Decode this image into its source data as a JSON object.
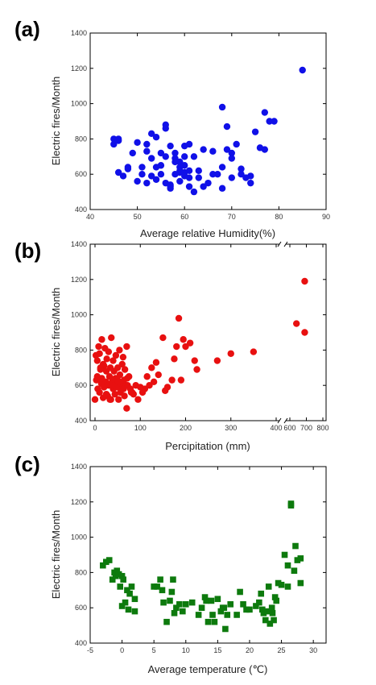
{
  "panels": [
    {
      "letter": "(a)",
      "xlabel": "Average relative Humidity(%)",
      "ylabel": "Electric fires/Month"
    },
    {
      "letter": "(b)",
      "xlabel": "Percipitation (mm)",
      "ylabel": "Electric fires/Month"
    },
    {
      "letter": "(c)",
      "xlabel": "Average temperature (℃)",
      "ylabel": "Electric fires/Month"
    }
  ],
  "chart_data": [
    {
      "type": "scatter",
      "title": "",
      "xlabel": "Average relative Humidity(%)",
      "ylabel": "Electric fires/Month",
      "xlim": [
        40,
        90
      ],
      "ylim": [
        400,
        1400
      ],
      "xticks": [
        40,
        50,
        60,
        70,
        80,
        90
      ],
      "yticks": [
        400,
        600,
        800,
        1000,
        1200,
        1400
      ],
      "marker": "circle",
      "color": "#1010e8",
      "grid": false,
      "x": [
        45,
        45,
        46,
        46,
        47,
        48,
        49,
        50,
        51,
        51,
        52,
        52,
        53,
        53,
        54,
        54,
        55,
        55,
        56,
        56,
        56,
        57,
        57,
        58,
        58,
        58,
        59,
        59,
        59,
        60,
        60,
        60,
        60,
        61,
        61,
        62,
        63,
        63,
        64,
        65,
        66,
        67,
        68,
        68,
        69,
        70,
        70,
        71,
        72,
        73,
        74,
        75,
        76,
        77,
        78,
        85,
        46,
        48,
        50,
        52,
        53,
        54,
        55,
        56,
        57,
        58,
        59,
        60,
        61,
        62,
        64,
        66,
        68,
        69,
        70,
        72,
        74,
        77,
        79,
        57,
        59,
        61
      ],
      "y": [
        800,
        770,
        800,
        610,
        590,
        640,
        720,
        780,
        640,
        600,
        550,
        770,
        590,
        830,
        640,
        810,
        720,
        600,
        860,
        880,
        550,
        520,
        760,
        690,
        720,
        600,
        640,
        620,
        670,
        650,
        700,
        590,
        610,
        530,
        580,
        500,
        620,
        580,
        530,
        550,
        730,
        600,
        980,
        640,
        870,
        720,
        580,
        770,
        630,
        580,
        590,
        840,
        750,
        950,
        900,
        1190,
        790,
        630,
        560,
        730,
        690,
        570,
        650,
        700,
        530,
        670,
        610,
        760,
        620,
        700,
        740,
        600,
        520,
        740,
        690,
        600,
        550,
        740,
        900,
        540,
        560,
        770
      ]
    },
    {
      "type": "scatter",
      "title": "",
      "xlabel": "Percipitation (mm)",
      "ylabel": "Electric fires/Month",
      "xlim": [
        -20,
        800
      ],
      "ylim": [
        400,
        1400
      ],
      "xticks": [
        0,
        100,
        200,
        300,
        400,
        600,
        700,
        800
      ],
      "yticks": [
        400,
        600,
        800,
        1000,
        1200,
        1400
      ],
      "axis_break": "between 400 and 600",
      "marker": "circle",
      "color": "#e81010",
      "grid": false,
      "x": [
        0,
        2,
        3,
        5,
        6,
        8,
        10,
        10,
        12,
        14,
        15,
        15,
        18,
        20,
        20,
        22,
        24,
        25,
        26,
        28,
        30,
        30,
        32,
        34,
        35,
        36,
        38,
        40,
        40,
        42,
        44,
        45,
        46,
        48,
        50,
        50,
        52,
        54,
        55,
        56,
        58,
        60,
        60,
        62,
        64,
        65,
        66,
        68,
        70,
        70,
        72,
        75,
        78,
        80,
        85,
        90,
        95,
        100,
        105,
        110,
        115,
        120,
        125,
        130,
        135,
        140,
        150,
        155,
        160,
        170,
        175,
        180,
        185,
        190,
        195,
        200,
        210,
        220,
        225,
        270,
        300,
        350,
        640,
        690,
        690,
        5,
        12,
        18,
        25,
        33,
        41,
        52,
        63,
        71,
        82
      ],
      "y": [
        520,
        770,
        630,
        740,
        580,
        820,
        560,
        780,
        690,
        610,
        860,
        640,
        530,
        710,
        590,
        810,
        620,
        680,
        750,
        540,
        790,
        600,
        650,
        700,
        520,
        870,
        620,
        580,
        740,
        680,
        550,
        640,
        770,
        590,
        630,
        700,
        520,
        800,
        660,
        560,
        610,
        720,
        580,
        760,
        630,
        540,
        690,
        600,
        820,
        470,
        600,
        650,
        580,
        560,
        550,
        600,
        520,
        590,
        560,
        580,
        650,
        600,
        700,
        620,
        730,
        660,
        870,
        570,
        590,
        630,
        750,
        820,
        980,
        630,
        860,
        820,
        840,
        740,
        690,
        740,
        780,
        790,
        950,
        1190,
        900,
        650,
        700,
        720,
        550,
        520,
        600,
        620,
        580,
        640,
        560
      ]
    },
    {
      "type": "scatter",
      "title": "",
      "xlabel": "Average temperature (℃)",
      "ylabel": "Electric fires/Month",
      "xlim": [
        -5,
        32
      ],
      "ylim": [
        400,
        1400
      ],
      "xticks": [
        -5,
        0,
        5,
        10,
        15,
        20,
        25,
        30
      ],
      "yticks": [
        400,
        600,
        800,
        1000,
        1200,
        1400
      ],
      "marker": "square",
      "color": "#0d7a0d",
      "grid": false,
      "x": [
        -3,
        -2.5,
        -2,
        -1.5,
        -1.2,
        -1,
        -0.8,
        -0.5,
        -0.3,
        0,
        0,
        0.2,
        0.5,
        0.8,
        1,
        1.2,
        1.5,
        2,
        2,
        5,
        5.5,
        6,
        6.3,
        6.5,
        7,
        7.5,
        7.8,
        8,
        8.2,
        8.5,
        9,
        9.5,
        10,
        11,
        12,
        12.5,
        13,
        13.5,
        14,
        14.2,
        14.5,
        15,
        15.5,
        15.8,
        16,
        16.2,
        16.5,
        17,
        18,
        18.5,
        19,
        19.5,
        20,
        21,
        21.5,
        22,
        22.2,
        22.5,
        22.8,
        23,
        23.2,
        23.5,
        23.8,
        24,
        24.5,
        25,
        25.5,
        26,
        26,
        26.5,
        26.5,
        27,
        27.2,
        27.5,
        28,
        28,
        24.2,
        23.6,
        21.8,
        13.2
      ],
      "y": [
        840,
        860,
        870,
        760,
        800,
        780,
        810,
        790,
        720,
        610,
        780,
        760,
        630,
        700,
        590,
        680,
        720,
        650,
        580,
        720,
        720,
        760,
        700,
        630,
        520,
        640,
        690,
        760,
        570,
        600,
        620,
        580,
        620,
        630,
        560,
        600,
        660,
        520,
        640,
        560,
        520,
        650,
        580,
        600,
        600,
        480,
        560,
        620,
        560,
        690,
        620,
        590,
        590,
        610,
        630,
        590,
        570,
        530,
        580,
        720,
        510,
        600,
        530,
        660,
        740,
        730,
        900,
        720,
        840,
        1190,
        1180,
        810,
        950,
        870,
        880,
        740,
        640,
        570,
        680,
        640
      ]
    }
  ]
}
